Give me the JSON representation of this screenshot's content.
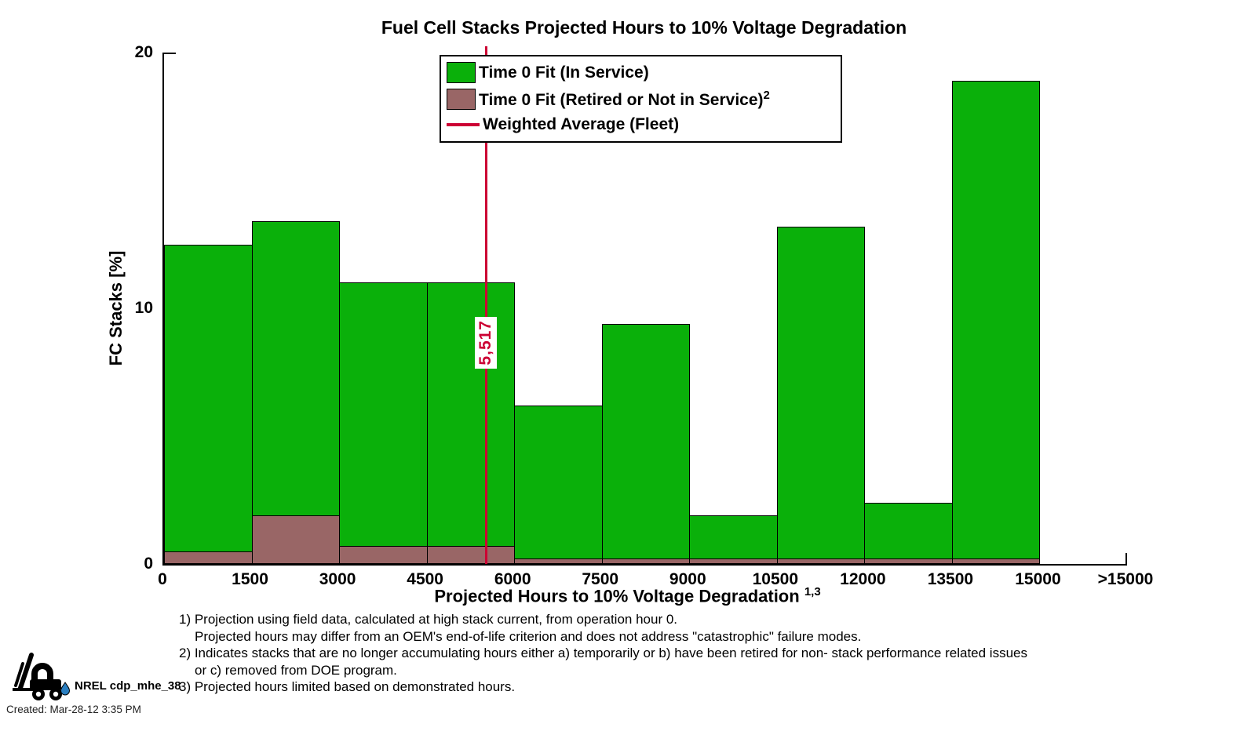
{
  "title": "Fuel Cell Stacks Projected Hours to 10% Voltage Degradation",
  "colors": {
    "in_service": "#0ab00a",
    "retired": "#996666",
    "average_line": "#cc0033",
    "axis": "#000000",
    "background": "#ffffff"
  },
  "legend": {
    "in_service_label": "Time 0 Fit (In Service)",
    "retired_label": "Time 0 Fit (Retired or Not in Service)",
    "retired_sup": "2",
    "average_label": "Weighted Average (Fleet)"
  },
  "weighted_average": {
    "label": "5,517"
  },
  "chart_data": {
    "type": "bar",
    "stacked": true,
    "title": "Fuel Cell Stacks Projected Hours to 10% Voltage Degradation",
    "xlabel": "Projected Hours to 10% Voltage Degradation",
    "xlabel_superscript": "1,3",
    "ylabel": "FC Stacks [%]",
    "ylim": [
      0,
      20
    ],
    "yticks": [
      0,
      10,
      20
    ],
    "ytick_labels": [
      "0",
      "10",
      "20"
    ],
    "xticks": [
      "0",
      "1500",
      "3000",
      "4500",
      "6000",
      "7500",
      "9000",
      "10500",
      "12000",
      "13500",
      "15000",
      ">15000"
    ],
    "bin_width_hours": 1500,
    "bin_ranges_hours": [
      [
        0,
        1500
      ],
      [
        1500,
        3000
      ],
      [
        3000,
        4500
      ],
      [
        4500,
        6000
      ],
      [
        6000,
        7500
      ],
      [
        7500,
        9000
      ],
      [
        9000,
        10500
      ],
      [
        10500,
        12000
      ],
      [
        12000,
        13500
      ],
      [
        13500,
        15000
      ],
      [
        15000,
        null
      ]
    ],
    "series": [
      {
        "name": "Time 0 Fit (Retired or Not in Service)",
        "values": [
          0.5,
          1.9,
          0.7,
          0.7,
          0.2,
          0.2,
          0.2,
          0.2,
          0.2,
          0.2,
          0
        ]
      },
      {
        "name": "Time 0 Fit (In Service)",
        "values": [
          12.0,
          11.5,
          10.3,
          10.3,
          6.0,
          9.2,
          1.7,
          13.0,
          2.2,
          18.7,
          0
        ]
      }
    ],
    "totals": [
      12.5,
      13.4,
      11.0,
      11.0,
      6.2,
      9.4,
      1.9,
      13.2,
      2.4,
      18.9,
      0
    ],
    "weighted_average_hours": 5517,
    "legend_position": "top-center",
    "grid": false
  },
  "footnotes": [
    {
      "text": "1) Projection using field data, calculated at high stack current, from operation hour 0.",
      "indent": false
    },
    {
      "text": "Projected hours may differ from an OEM's end-of-life criterion and does not address \"catastrophic\" failure modes.",
      "indent": true
    },
    {
      "text": "2) Indicates stacks that are no longer accumulating hours either a) temporarily or b) have been retired for non- stack performance related issues",
      "indent": false
    },
    {
      "text": "or c) removed from DOE program.",
      "indent": true
    },
    {
      "text": "3) Projected hours limited based on demonstrated hours.",
      "indent": false
    }
  ],
  "footer": {
    "logo": "forklift-icon",
    "program_label": "NREL cdp_mhe_38",
    "created_label": "Created: Mar-28-12  3:35 PM"
  }
}
